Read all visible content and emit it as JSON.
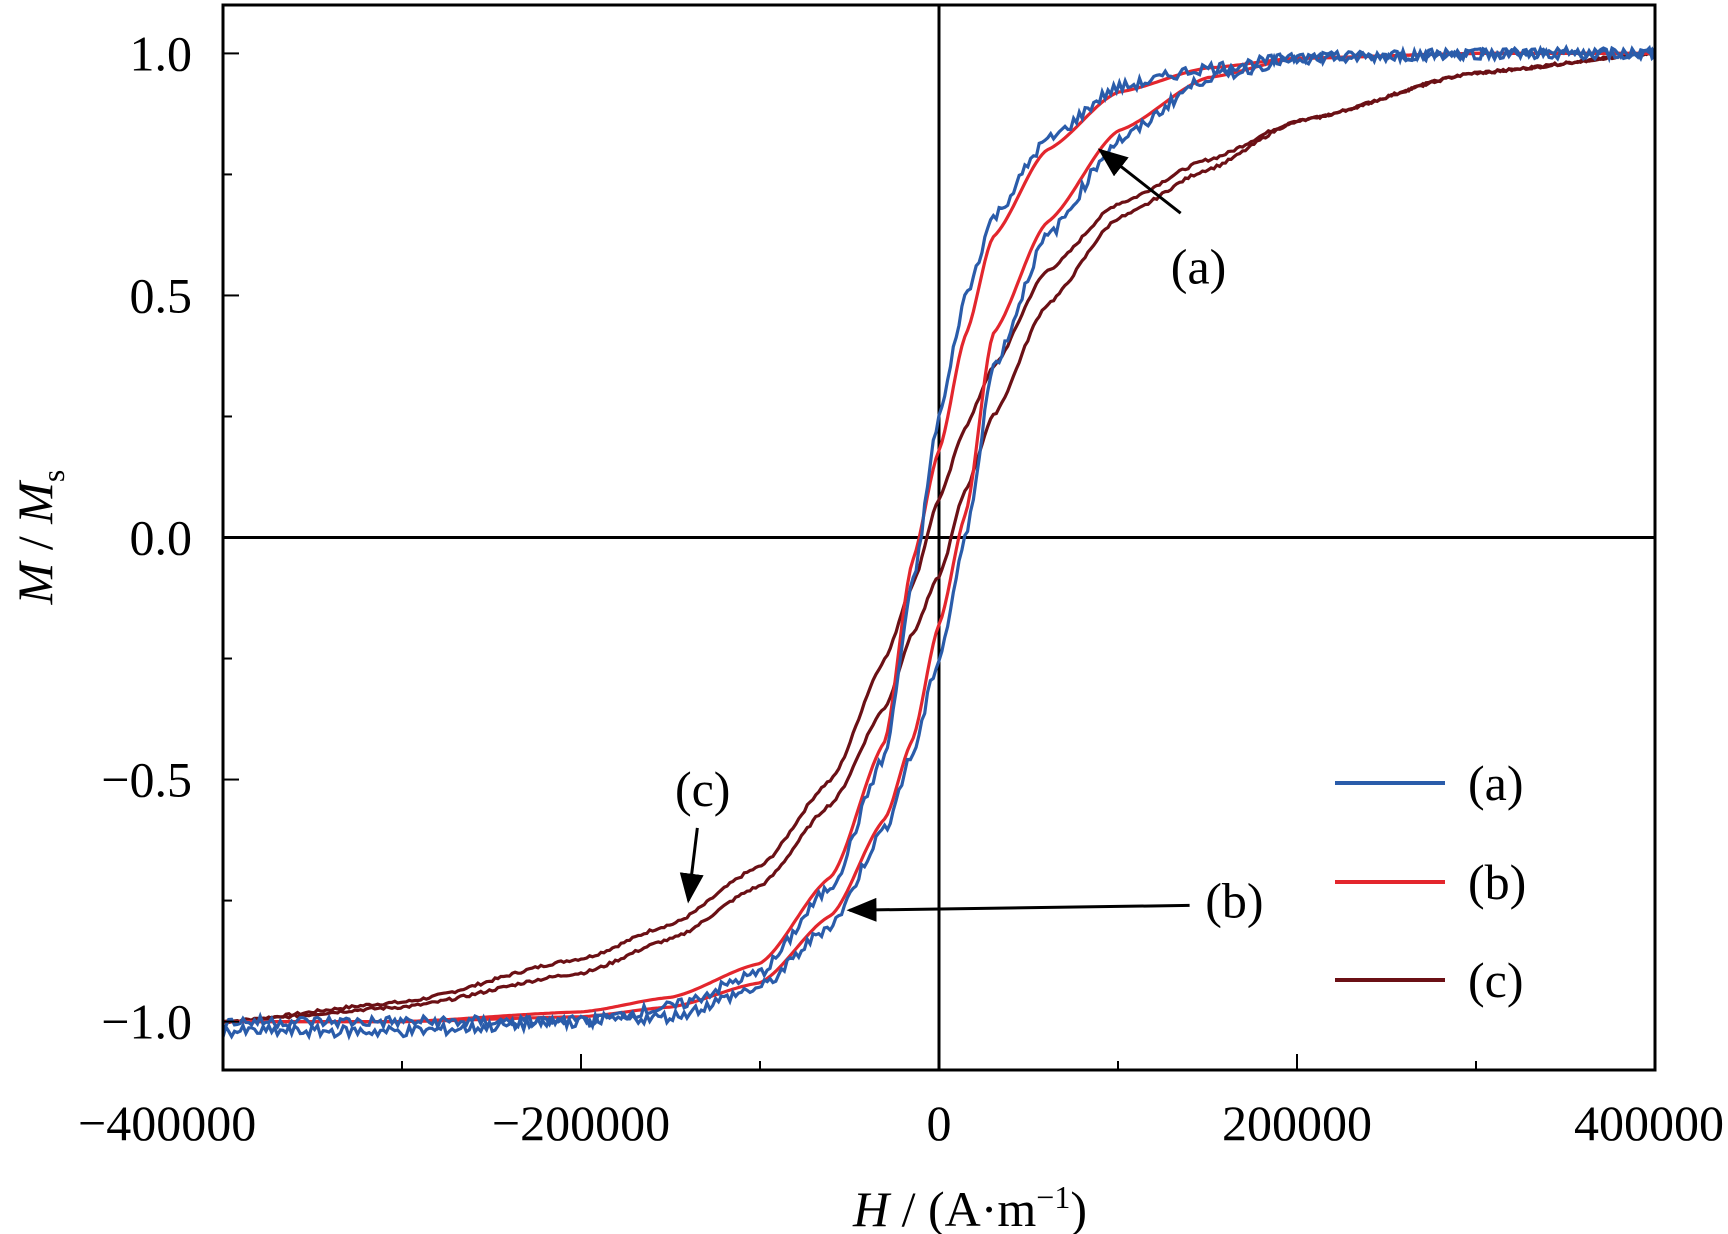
{
  "chart_data": {
    "type": "line",
    "title": "",
    "xlabel": {
      "italic": "H",
      "rest": " / (A·m",
      "sup": "−1",
      "close": ")"
    },
    "ylabel": {
      "italic": "M",
      "sep": " / ",
      "italic2": "M",
      "sub": "s"
    },
    "xlim": [
      -400000,
      400000
    ],
    "ylim": [
      -1.1,
      1.1
    ],
    "x_ticks": [
      -400000,
      -200000,
      0,
      200000,
      400000
    ],
    "x_tick_labels": [
      "−400000",
      "−200000",
      "0",
      "200000",
      "400000"
    ],
    "x_minor_ticks": [
      -300000,
      -100000,
      100000,
      300000
    ],
    "y_ticks": [
      -1.0,
      -0.5,
      0.0,
      0.5,
      1.0
    ],
    "y_tick_labels": [
      "−1.0",
      "−0.5",
      "0.0",
      "0.5",
      "1.0"
    ],
    "y_minor_ticks": [
      -0.75,
      -0.25,
      0.25,
      0.75
    ],
    "legend_position": "bottom-right",
    "series": [
      {
        "name": "(a)",
        "color": "#2a5caa",
        "noise": 0.012,
        "branches": {
          "upper": {
            "x": [
              -400000,
              -300000,
              -200000,
              -150000,
              -100000,
              -60000,
              -30000,
              -15000,
              0,
              15000,
              30000,
              60000,
              100000,
              150000,
              200000,
              300000,
              400000
            ],
            "y": [
              -1.02,
              -1.02,
              -1.0,
              -0.97,
              -0.9,
              -0.72,
              -0.45,
              -0.1,
              0.25,
              0.5,
              0.66,
              0.82,
              0.93,
              0.97,
              0.99,
              1.0,
              1.0
            ]
          },
          "lower": {
            "x": [
              -400000,
              -300000,
              -200000,
              -150000,
              -100000,
              -60000,
              -30000,
              -15000,
              0,
              15000,
              30000,
              60000,
              100000,
              150000,
              200000,
              300000,
              400000
            ],
            "y": [
              -1.0,
              -1.0,
              -1.0,
              -0.99,
              -0.93,
              -0.8,
              -0.6,
              -0.45,
              -0.25,
              0.0,
              0.35,
              0.62,
              0.82,
              0.95,
              0.99,
              1.0,
              1.0
            ]
          }
        }
      },
      {
        "name": "(b)",
        "color": "#e3262d",
        "noise": 0.0,
        "branches": {
          "upper": {
            "x": [
              -400000,
              -300000,
              -200000,
              -150000,
              -100000,
              -60000,
              -30000,
              -15000,
              0,
              15000,
              30000,
              60000,
              100000,
              150000,
              200000,
              300000,
              400000
            ],
            "y": [
              -1.0,
              -1.0,
              -0.98,
              -0.95,
              -0.88,
              -0.7,
              -0.42,
              -0.05,
              0.18,
              0.42,
              0.62,
              0.8,
              0.92,
              0.97,
              0.99,
              1.0,
              1.0
            ]
          },
          "lower": {
            "x": [
              -400000,
              -300000,
              -200000,
              -150000,
              -100000,
              -60000,
              -30000,
              -15000,
              0,
              15000,
              30000,
              60000,
              100000,
              150000,
              200000,
              300000,
              400000
            ],
            "y": [
              -1.0,
              -1.0,
              -0.99,
              -0.97,
              -0.92,
              -0.78,
              -0.58,
              -0.42,
              -0.18,
              0.05,
              0.42,
              0.65,
              0.84,
              0.95,
              0.99,
              1.0,
              1.0
            ]
          }
        }
      },
      {
        "name": "(c)",
        "color": "#6b1015",
        "noise": 0.003,
        "branches": {
          "upper": {
            "x": [
              -400000,
              -300000,
              -200000,
              -150000,
              -100000,
              -60000,
              -30000,
              -15000,
              0,
              15000,
              30000,
              60000,
              100000,
              150000,
              200000,
              300000,
              400000
            ],
            "y": [
              -1.0,
              -0.96,
              -0.87,
              -0.8,
              -0.68,
              -0.5,
              -0.25,
              -0.1,
              0.08,
              0.23,
              0.35,
              0.55,
              0.69,
              0.78,
              0.86,
              0.96,
              1.0
            ]
          },
          "lower": {
            "x": [
              -400000,
              -300000,
              -200000,
              -150000,
              -100000,
              -60000,
              -30000,
              -15000,
              0,
              15000,
              30000,
              60000,
              100000,
              150000,
              200000,
              300000,
              400000
            ],
            "y": [
              -1.0,
              -0.97,
              -0.9,
              -0.83,
              -0.72,
              -0.55,
              -0.35,
              -0.2,
              -0.08,
              0.1,
              0.25,
              0.48,
              0.66,
              0.76,
              0.86,
              0.96,
              1.0
            ]
          }
        }
      }
    ],
    "annotations": [
      {
        "text": "(a)",
        "x": 145000,
        "y": 0.56,
        "arrow_from": [
          135000,
          0.67
        ],
        "arrow_to": [
          90000,
          0.8
        ]
      },
      {
        "text": "(b)",
        "x": 165000,
        "y": -0.75,
        "arrow_from": [
          140000,
          -0.76
        ],
        "arrow_to": [
          -50000,
          -0.77
        ]
      },
      {
        "text": "(c)",
        "x": -132000,
        "y": -0.52,
        "arrow_from": [
          -135000,
          -0.6
        ],
        "arrow_to": [
          -140000,
          -0.75
        ]
      }
    ]
  }
}
